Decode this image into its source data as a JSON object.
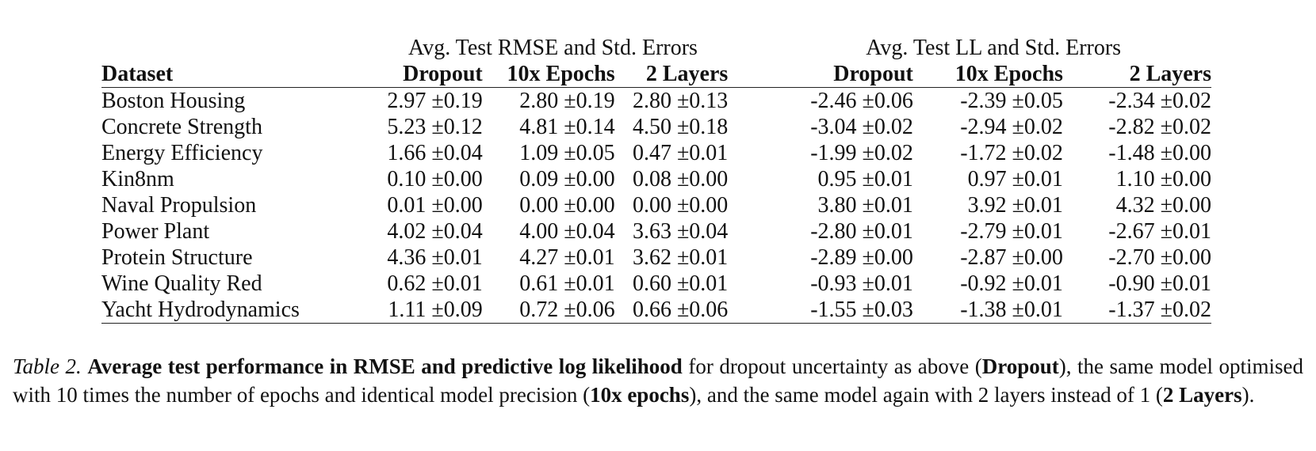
{
  "table": {
    "group_headers": {
      "rmse": "Avg. Test RMSE and Std. Errors",
      "ll": "Avg. Test LL and Std. Errors"
    },
    "columns": [
      "Dataset",
      "Dropout",
      "10x Epochs",
      "2 Layers",
      "Dropout",
      "10x Epochs",
      "2 Layers"
    ],
    "rows": [
      [
        "Boston Housing",
        "2.97 ±0.19",
        "2.80 ±0.19",
        "2.80 ±0.13",
        "-2.46 ±0.06",
        "-2.39 ±0.05",
        "-2.34 ±0.02"
      ],
      [
        "Concrete Strength",
        "5.23 ±0.12",
        "4.81 ±0.14",
        "4.50 ±0.18",
        "-3.04 ±0.02",
        "-2.94 ±0.02",
        "-2.82 ±0.02"
      ],
      [
        "Energy Efficiency",
        "1.66 ±0.04",
        "1.09 ±0.05",
        "0.47 ±0.01",
        "-1.99 ±0.02",
        "-1.72 ±0.02",
        "-1.48 ±0.00"
      ],
      [
        "Kin8nm",
        "0.10 ±0.00",
        "0.09 ±0.00",
        "0.08 ±0.00",
        "0.95 ±0.01",
        "0.97 ±0.01",
        "1.10 ±0.00"
      ],
      [
        "Naval Propulsion",
        "0.01 ±0.00",
        "0.00 ±0.00",
        "0.00 ±0.00",
        "3.80 ±0.01",
        "3.92 ±0.01",
        "4.32 ±0.00"
      ],
      [
        "Power Plant",
        "4.02 ±0.04",
        "4.00 ±0.04",
        "3.63 ±0.04",
        "-2.80 ±0.01",
        "-2.79 ±0.01",
        "-2.67 ±0.01"
      ],
      [
        "Protein Structure",
        "4.36 ±0.01",
        "4.27 ±0.01",
        "3.62 ±0.01",
        "-2.89 ±0.00",
        "-2.87 ±0.00",
        "-2.70 ±0.00"
      ],
      [
        "Wine Quality Red",
        "0.62 ±0.01",
        "0.61 ±0.01",
        "0.60 ±0.01",
        "-0.93 ±0.01",
        "-0.92 ±0.01",
        "-0.90 ±0.01"
      ],
      [
        "Yacht Hydrodynamics",
        "1.11 ±0.09",
        "0.72 ±0.06",
        "0.66 ±0.06",
        "-1.55 ±0.03",
        "-1.38 ±0.01",
        "-1.37 ±0.02"
      ]
    ]
  },
  "caption": {
    "label": "Table 2.",
    "bold_lead": "Average test performance in RMSE and predictive log likelihood",
    "text1": " for dropout uncertainty as above (",
    "bold1": "Dropout",
    "text2": "), the same model optimised with 10 times the number of epochs and identical model precision (",
    "bold2": "10x epochs",
    "text3": "), and the same model again with 2 layers instead of 1 (",
    "bold3": "2 Layers",
    "text4": ")."
  }
}
